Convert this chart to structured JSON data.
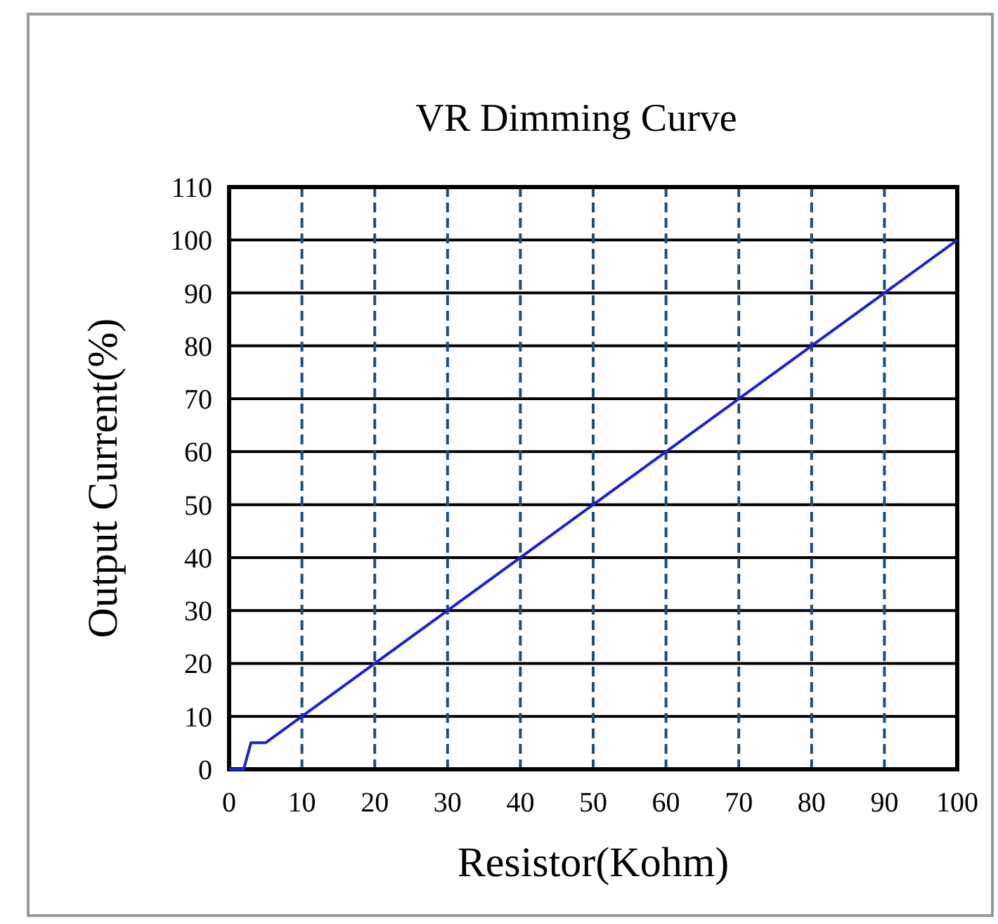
{
  "chart_data": {
    "type": "line",
    "title": "VR Dimming Curve",
    "xlabel": "Resistor(Kohm)",
    "ylabel": "Output Current(%)",
    "x": [
      0,
      2,
      3,
      5,
      100
    ],
    "series": [
      {
        "color": "#2020d0",
        "values": [
          0,
          0,
          5,
          5,
          100
        ]
      }
    ],
    "xlim": [
      0,
      100
    ],
    "xticks": [
      0,
      10,
      20,
      30,
      40,
      50,
      60,
      70,
      80,
      90,
      100
    ],
    "ylim": [
      0,
      110
    ],
    "yticks": [
      0,
      10,
      20,
      30,
      40,
      50,
      60,
      70,
      80,
      90,
      100,
      110
    ],
    "grid": true,
    "marker": "none",
    "line_style": "solid"
  }
}
